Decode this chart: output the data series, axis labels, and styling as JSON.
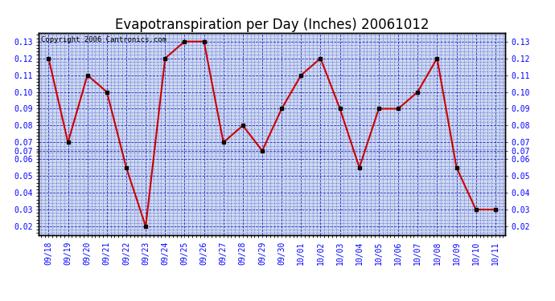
{
  "title": "Evapotranspiration per Day (Inches) 20061012",
  "copyright_text": "Copyright 2006 Cantronics.com",
  "dates": [
    "09/18",
    "09/19",
    "09/20",
    "09/21",
    "09/22",
    "09/23",
    "09/24",
    "09/25",
    "09/26",
    "09/27",
    "09/28",
    "09/29",
    "09/30",
    "10/01",
    "10/02",
    "10/03",
    "10/04",
    "10/05",
    "10/06",
    "10/07",
    "10/08",
    "10/09",
    "10/10",
    "10/11"
  ],
  "values": [
    0.12,
    0.07,
    0.11,
    0.1,
    0.055,
    0.02,
    0.12,
    0.13,
    0.13,
    0.07,
    0.08,
    0.065,
    0.09,
    0.11,
    0.12,
    0.09,
    0.055,
    0.09,
    0.09,
    0.1,
    0.12,
    0.055,
    0.03,
    0.03
  ],
  "ylim": [
    0.015,
    0.135
  ],
  "ytick_values": [
    0.13,
    0.12,
    0.11,
    0.1,
    0.09,
    0.08,
    0.07,
    0.07,
    0.06,
    0.05,
    0.04,
    0.03,
    0.02
  ],
  "ytick_positions": [
    0.13,
    0.12,
    0.11,
    0.1,
    0.09,
    0.08,
    0.07,
    0.065,
    0.06,
    0.05,
    0.04,
    0.03,
    0.02
  ],
  "line_color": "#cc0000",
  "marker_color": "#110000",
  "bg_color": "#ccd9f0",
  "grid_color": "#0000bb",
  "border_color": "#000000",
  "title_fontsize": 12,
  "tick_fontsize": 7,
  "copyright_fontsize": 6.5
}
